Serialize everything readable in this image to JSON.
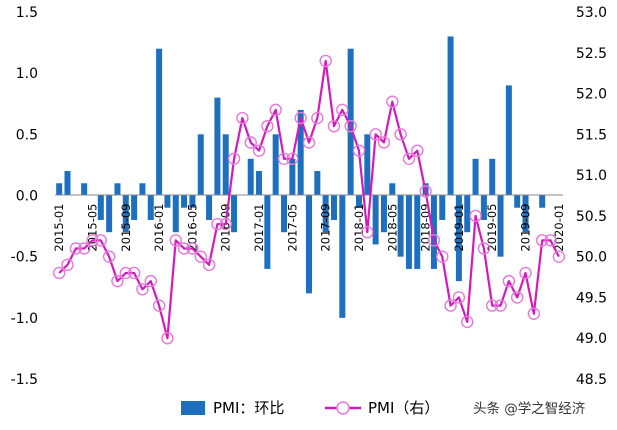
{
  "chart_data": {
    "type": "bar+line",
    "x": [
      "2015-01",
      "2015-02",
      "2015-03",
      "2015-04",
      "2015-05",
      "2015-06",
      "2015-07",
      "2015-08",
      "2015-09",
      "2015-10",
      "2015-11",
      "2015-12",
      "2016-01",
      "2016-02",
      "2016-03",
      "2016-04",
      "2016-05",
      "2016-06",
      "2016-07",
      "2016-08",
      "2016-09",
      "2016-10",
      "2016-11",
      "2016-12",
      "2017-01",
      "2017-02",
      "2017-03",
      "2017-04",
      "2017-05",
      "2017-06",
      "2017-07",
      "2017-08",
      "2017-09",
      "2017-10",
      "2017-11",
      "2017-12",
      "2018-01",
      "2018-02",
      "2018-03",
      "2018-04",
      "2018-05",
      "2018-06",
      "2018-07",
      "2018-08",
      "2018-09",
      "2018-10",
      "2018-11",
      "2018-12",
      "2019-01",
      "2019-02",
      "2019-03",
      "2019-04",
      "2019-05",
      "2019-06",
      "2019-07",
      "2019-08",
      "2019-09",
      "2019-10",
      "2019-11",
      "2019-12",
      "2020-01"
    ],
    "xtick_labels": [
      "2015-01",
      "2015-05",
      "2015-09",
      "2016-01",
      "2016-05",
      "2016-09",
      "2017-01",
      "2017-05",
      "2017-09",
      "2018-01",
      "2018-05",
      "2018-09",
      "2019-01",
      "2019-05",
      "2019-09",
      "2020-01"
    ],
    "series": [
      {
        "name": "PMI：环比",
        "type": "bar",
        "axis": "left",
        "color": "#1f6fbf",
        "values": [
          0.1,
          0.2,
          0,
          0.1,
          0,
          -0.2,
          -0.3,
          0.1,
          -0.3,
          -0.2,
          0.1,
          -0.2,
          1.2,
          -0.1,
          -0.3,
          -0.1,
          -0.1,
          0.5,
          -0.2,
          0.8,
          0.5,
          -0.3,
          0,
          0.3,
          0.2,
          -0.6,
          0.5,
          -0.3,
          0.3,
          0.7,
          -0.8,
          0.2,
          -0.3,
          -0.2,
          -1.0,
          1.2,
          -0.1,
          0.5,
          -0.4,
          -0.3,
          0.1,
          -0.5,
          -0.6,
          -0.6,
          0.1,
          -0.6,
          -0.2,
          1.3,
          -0.7,
          -0.3,
          0.3,
          -0.2,
          0.3,
          -0.5,
          0.9,
          -0.1,
          -0.3,
          0,
          -0.1,
          0,
          0
        ]
      },
      {
        "name": "PMI（右）",
        "type": "line",
        "axis": "right",
        "color": "#d21bbf",
        "marker_color": "#e57ad8",
        "values": [
          49.8,
          49.9,
          50.1,
          50.1,
          50.2,
          50.2,
          50.0,
          49.7,
          49.8,
          49.8,
          49.6,
          49.7,
          49.4,
          49.0,
          50.2,
          50.1,
          50.1,
          50.0,
          49.9,
          50.4,
          50.4,
          51.2,
          51.7,
          51.4,
          51.3,
          51.6,
          51.8,
          51.2,
          51.2,
          51.7,
          51.4,
          51.7,
          52.4,
          51.6,
          51.8,
          51.6,
          51.3,
          50.3,
          51.5,
          51.4,
          51.9,
          51.5,
          51.2,
          51.3,
          50.8,
          50.2,
          50.0,
          49.4,
          49.5,
          49.2,
          50.5,
          50.1,
          49.4,
          49.4,
          49.7,
          49.5,
          49.8,
          49.3,
          50.2,
          50.2,
          50.0
        ]
      }
    ],
    "left_axis": {
      "ylim": [
        -1.5,
        1.5
      ],
      "ticks": [
        "1.5",
        "1.0",
        "0.5",
        "0.0",
        "-0.5",
        "-1.0",
        "-1.5"
      ]
    },
    "right_axis": {
      "ylim": [
        48.5,
        53.0
      ],
      "ticks": [
        "53.0",
        "52.5",
        "52.0",
        "51.5",
        "51.0",
        "50.5",
        "50.0",
        "49.5",
        "49.0",
        "48.5"
      ]
    },
    "legend": {
      "placement": "bottom-center",
      "items": [
        "PMI：环比",
        "PMI（右）"
      ]
    },
    "grid": false,
    "watermark": "头条 @学之智经济"
  }
}
